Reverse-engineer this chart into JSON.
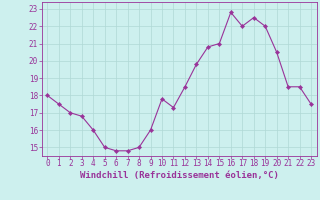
{
  "x": [
    0,
    1,
    2,
    3,
    4,
    5,
    6,
    7,
    8,
    9,
    10,
    11,
    12,
    13,
    14,
    15,
    16,
    17,
    18,
    19,
    20,
    21,
    22,
    23
  ],
  "y": [
    18.0,
    17.5,
    17.0,
    16.8,
    16.0,
    15.0,
    14.8,
    14.8,
    15.0,
    16.0,
    17.8,
    17.3,
    18.5,
    19.8,
    20.8,
    21.0,
    22.8,
    22.0,
    22.5,
    22.0,
    20.5,
    18.5,
    18.5,
    17.5
  ],
  "line_color": "#993399",
  "marker": "D",
  "marker_size": 2.2,
  "bg_color": "#cdf0ee",
  "grid_color": "#b0d8d5",
  "xlabel": "Windchill (Refroidissement éolien,°C)",
  "tick_fontsize": 5.5,
  "xlabel_fontsize": 6.5,
  "ylim": [
    14.5,
    23.4
  ],
  "xlim": [
    -0.5,
    23.5
  ],
  "yticks": [
    15,
    16,
    17,
    18,
    19,
    20,
    21,
    22,
    23
  ],
  "xticks": [
    0,
    1,
    2,
    3,
    4,
    5,
    6,
    7,
    8,
    9,
    10,
    11,
    12,
    13,
    14,
    15,
    16,
    17,
    18,
    19,
    20,
    21,
    22,
    23
  ]
}
